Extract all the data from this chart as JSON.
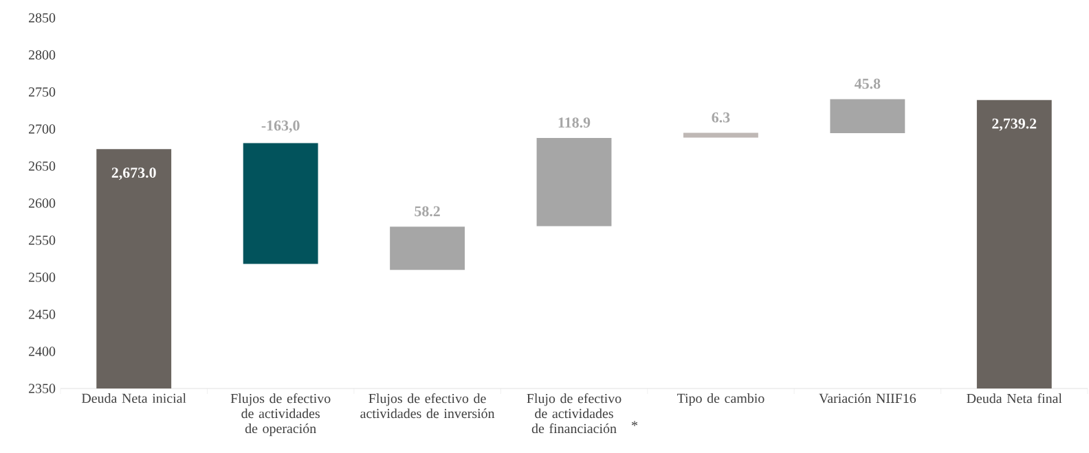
{
  "chart_data": {
    "type": "bar",
    "categories": [
      "Deuda Neta inicial",
      "Flujos de efectivo de actividades de operación",
      "Flujos de efectivo de actividades de inversión",
      "Flujo de efectivo de actividades de financiación",
      "Tipo de cambio",
      "Variación NIIF16",
      "Deuda Neta final"
    ],
    "values": [
      2673.0,
      -163.0,
      58.2,
      118.9,
      6.3,
      45.8,
      2739.2
    ],
    "base": [
      null,
      2681,
      2510,
      2569,
      2688.5,
      2694.5,
      null
    ],
    "colors": [
      "#69635e",
      "#02535c",
      "#a6a6a6",
      "#a6a6a6",
      "#bfb8b5",
      "#a6a6a6",
      "#69635e"
    ],
    "value_labels": [
      "2,673.0",
      "-163,0",
      "58.2",
      "118.9",
      "6.3",
      "45.8",
      "2,739.2"
    ],
    "ylim": [
      2350,
      2850
    ],
    "yticks": [
      2350,
      2400,
      2450,
      2500,
      2550,
      2600,
      2650,
      2700,
      2750,
      2800,
      2850
    ],
    "annotations": [
      "*"
    ]
  }
}
